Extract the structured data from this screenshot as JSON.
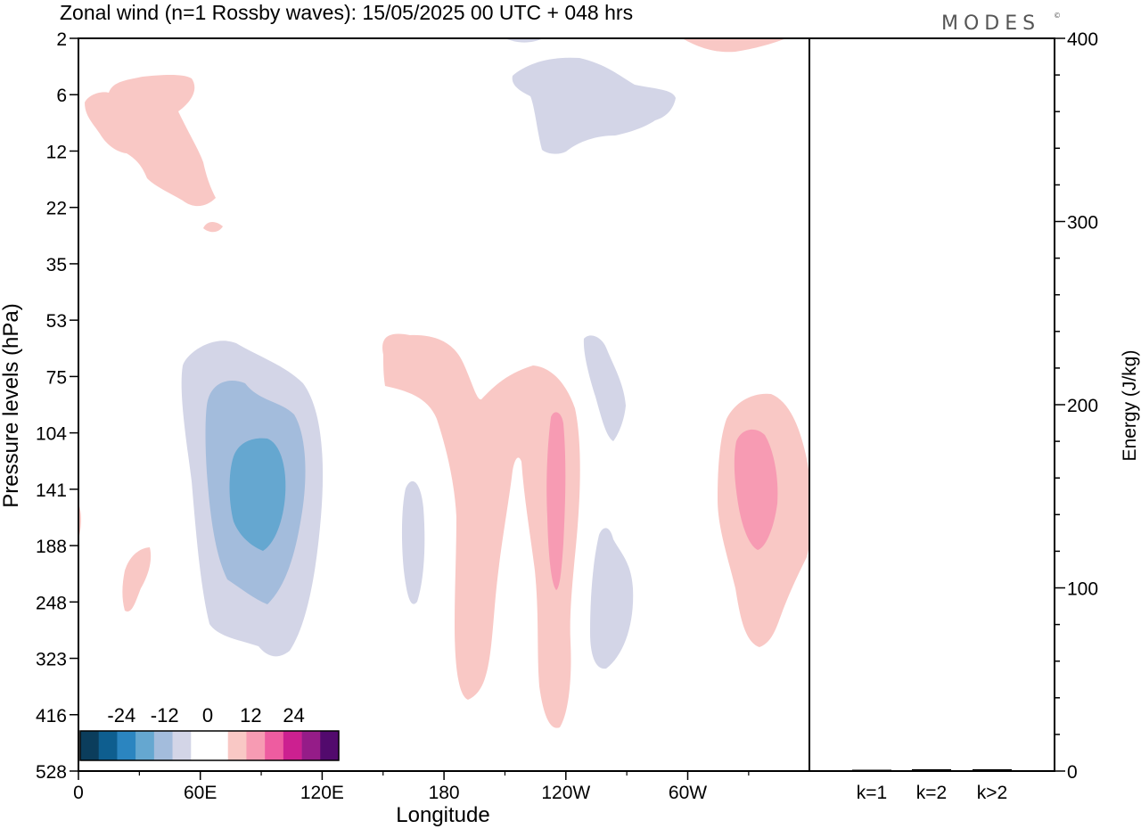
{
  "title": "Zonal wind (n=1 Rossby waves):  15/05/2025  00 UTC  + 048 hrs",
  "logo": "MODES",
  "logo_mark": "©",
  "chart_data": {
    "type": "heatmap",
    "title": "Zonal wind (n=1 Rossby waves):  15/05/2025  00 UTC  + 048 hrs",
    "xlabel": "Longitude",
    "ylabel": "Pressure levels (hPa)",
    "x_ticks": [
      "0",
      "60E",
      "120E",
      "180",
      "120W",
      "60W"
    ],
    "y_ticks": [
      "2",
      "6",
      "12",
      "22",
      "35",
      "53",
      "75",
      "104",
      "141",
      "188",
      "248",
      "323",
      "416",
      "528"
    ],
    "colorbar": {
      "tick_labels": [
        "-24",
        "-12",
        "0",
        "12",
        "24"
      ],
      "colors": [
        "#0b3d5c",
        "#0e5e8f",
        "#2b85c0",
        "#65a7d0",
        "#a3bcdc",
        "#d3d5e7",
        "#ffffff",
        "#ffffff",
        "#f9c8c5",
        "#f79bb3",
        "#ee5ca0",
        "#cc2090",
        "#951c88",
        "#520a6d"
      ]
    },
    "contours": [
      {
        "value": -4,
        "color": "#d3d5e7",
        "location": "60E-125E, 70-330 hPa"
      },
      {
        "value": -8,
        "color": "#a3bcdc",
        "location": "65E-115E, 85-250 hPa"
      },
      {
        "value": -12,
        "color": "#65a7d0",
        "location": "75E-100E, 115-185 hPa"
      },
      {
        "value": -4,
        "color": "#d3d5e7",
        "location": "100W-60W, 2-12 hPa"
      },
      {
        "value": -4,
        "color": "#d3d5e7",
        "location": "165E-170E, 140-250 hPa"
      },
      {
        "value": -4,
        "color": "#d3d5e7",
        "location": "135W-128W, 55-100 hPa"
      },
      {
        "value": -4,
        "color": "#d3d5e7",
        "location": "138W-128W, 190-330 hPa"
      },
      {
        "value": 4,
        "color": "#f9c8c5",
        "location": "0-60E, 4-22 hPa"
      },
      {
        "value": 4,
        "color": "#f9c8c5",
        "location": "150E-130W, 55-410 hPa"
      },
      {
        "value": 8,
        "color": "#f79bb3",
        "location": "118W-115W, 115-260 hPa"
      },
      {
        "value": 4,
        "color": "#f9c8c5",
        "location": "60W-0, 90-330 hPa"
      },
      {
        "value": 8,
        "color": "#f79bb3",
        "location": "50W-38W, 110-190 hPa"
      },
      {
        "value": 4,
        "color": "#f9c8c5",
        "location": "25E-35E, 190-260 hPa"
      }
    ]
  },
  "energy": {
    "ylabel": "Energy (J/kg)",
    "y_ticks": [
      "0",
      "100",
      "200",
      "300",
      "400"
    ],
    "ylim": [
      0,
      400
    ],
    "categories": [
      "k=1",
      "k=2",
      "k>2"
    ],
    "values": [
      0.5,
      1.0,
      1.0
    ]
  }
}
